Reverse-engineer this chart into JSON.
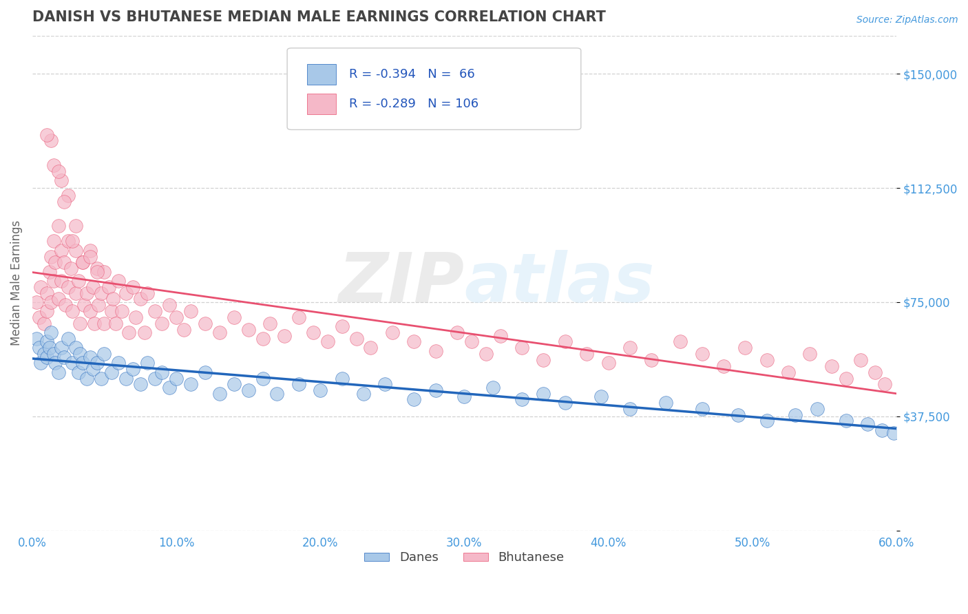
{
  "title": "DANISH VS BHUTANESE MEDIAN MALE EARNINGS CORRELATION CHART",
  "source": "Source: ZipAtlas.com",
  "ylabel": "Median Male Earnings",
  "xlim": [
    0.0,
    0.6
  ],
  "ylim": [
    0,
    162500
  ],
  "yticks": [
    0,
    37500,
    75000,
    112500,
    150000
  ],
  "ytick_labels": [
    "",
    "$37,500",
    "$75,000",
    "$112,500",
    "$150,000"
  ],
  "xticks": [
    0.0,
    0.1,
    0.2,
    0.3,
    0.4,
    0.5,
    0.6
  ],
  "xtick_labels": [
    "0.0%",
    "10.0%",
    "20.0%",
    "30.0%",
    "40.0%",
    "50.0%",
    "60.0%"
  ],
  "background_color": "#ffffff",
  "plot_bg_color": "#ffffff",
  "grid_color": "#cccccc",
  "danes_color": "#a8c8e8",
  "bhutanese_color": "#f5b8c8",
  "danes_line_color": "#2266bb",
  "bhutanese_line_color": "#e85070",
  "danes_R": -0.394,
  "danes_N": 66,
  "bhutanese_R": -0.289,
  "bhutanese_N": 106,
  "title_color": "#444444",
  "axis_label_color": "#666666",
  "tick_color": "#4499dd",
  "legend_value_color": "#2255bb",
  "legend_text_color": "#444444",
  "watermark_color": "#d0e8f8",
  "danes_x": [
    0.003,
    0.005,
    0.006,
    0.008,
    0.01,
    0.01,
    0.012,
    0.013,
    0.015,
    0.016,
    0.018,
    0.02,
    0.022,
    0.025,
    0.028,
    0.03,
    0.032,
    0.033,
    0.035,
    0.038,
    0.04,
    0.042,
    0.045,
    0.048,
    0.05,
    0.055,
    0.06,
    0.065,
    0.07,
    0.075,
    0.08,
    0.085,
    0.09,
    0.095,
    0.1,
    0.11,
    0.12,
    0.13,
    0.14,
    0.15,
    0.16,
    0.17,
    0.185,
    0.2,
    0.215,
    0.23,
    0.245,
    0.265,
    0.28,
    0.3,
    0.32,
    0.34,
    0.355,
    0.37,
    0.395,
    0.415,
    0.44,
    0.465,
    0.49,
    0.51,
    0.53,
    0.545,
    0.565,
    0.58,
    0.59,
    0.598
  ],
  "danes_y": [
    63000,
    60000,
    55000,
    58000,
    62000,
    57000,
    60000,
    65000,
    58000,
    55000,
    52000,
    60000,
    57000,
    63000,
    55000,
    60000,
    52000,
    58000,
    55000,
    50000,
    57000,
    53000,
    55000,
    50000,
    58000,
    52000,
    55000,
    50000,
    53000,
    48000,
    55000,
    50000,
    52000,
    47000,
    50000,
    48000,
    52000,
    45000,
    48000,
    46000,
    50000,
    45000,
    48000,
    46000,
    50000,
    45000,
    48000,
    43000,
    46000,
    44000,
    47000,
    43000,
    45000,
    42000,
    44000,
    40000,
    42000,
    40000,
    38000,
    36000,
    38000,
    40000,
    36000,
    35000,
    33000,
    32000
  ],
  "bhutanese_x": [
    0.003,
    0.005,
    0.006,
    0.008,
    0.01,
    0.01,
    0.012,
    0.013,
    0.013,
    0.015,
    0.015,
    0.016,
    0.018,
    0.018,
    0.02,
    0.02,
    0.022,
    0.023,
    0.025,
    0.025,
    0.027,
    0.028,
    0.03,
    0.03,
    0.032,
    0.033,
    0.035,
    0.036,
    0.038,
    0.04,
    0.04,
    0.042,
    0.043,
    0.045,
    0.046,
    0.048,
    0.05,
    0.05,
    0.053,
    0.055,
    0.056,
    0.058,
    0.06,
    0.062,
    0.065,
    0.067,
    0.07,
    0.072,
    0.075,
    0.078,
    0.08,
    0.085,
    0.09,
    0.095,
    0.1,
    0.105,
    0.11,
    0.12,
    0.13,
    0.14,
    0.15,
    0.16,
    0.165,
    0.175,
    0.185,
    0.195,
    0.205,
    0.215,
    0.225,
    0.235,
    0.25,
    0.265,
    0.28,
    0.295,
    0.305,
    0.315,
    0.325,
    0.34,
    0.355,
    0.37,
    0.385,
    0.4,
    0.415,
    0.43,
    0.45,
    0.465,
    0.48,
    0.495,
    0.51,
    0.525,
    0.54,
    0.555,
    0.565,
    0.575,
    0.585,
    0.592,
    0.015,
    0.02,
    0.013,
    0.025,
    0.01,
    0.018,
    0.022,
    0.028,
    0.03,
    0.035,
    0.04,
    0.045
  ],
  "bhutanese_y": [
    75000,
    70000,
    80000,
    68000,
    78000,
    72000,
    85000,
    90000,
    75000,
    95000,
    82000,
    88000,
    100000,
    76000,
    92000,
    82000,
    88000,
    74000,
    95000,
    80000,
    86000,
    72000,
    92000,
    78000,
    82000,
    68000,
    88000,
    74000,
    78000,
    92000,
    72000,
    80000,
    68000,
    86000,
    74000,
    78000,
    85000,
    68000,
    80000,
    72000,
    76000,
    68000,
    82000,
    72000,
    78000,
    65000,
    80000,
    70000,
    76000,
    65000,
    78000,
    72000,
    68000,
    74000,
    70000,
    66000,
    72000,
    68000,
    65000,
    70000,
    66000,
    63000,
    68000,
    64000,
    70000,
    65000,
    62000,
    67000,
    63000,
    60000,
    65000,
    62000,
    59000,
    65000,
    62000,
    58000,
    64000,
    60000,
    56000,
    62000,
    58000,
    55000,
    60000,
    56000,
    62000,
    58000,
    54000,
    60000,
    56000,
    52000,
    58000,
    54000,
    50000,
    56000,
    52000,
    48000,
    120000,
    115000,
    128000,
    110000,
    130000,
    118000,
    108000,
    95000,
    100000,
    88000,
    90000,
    85000
  ]
}
